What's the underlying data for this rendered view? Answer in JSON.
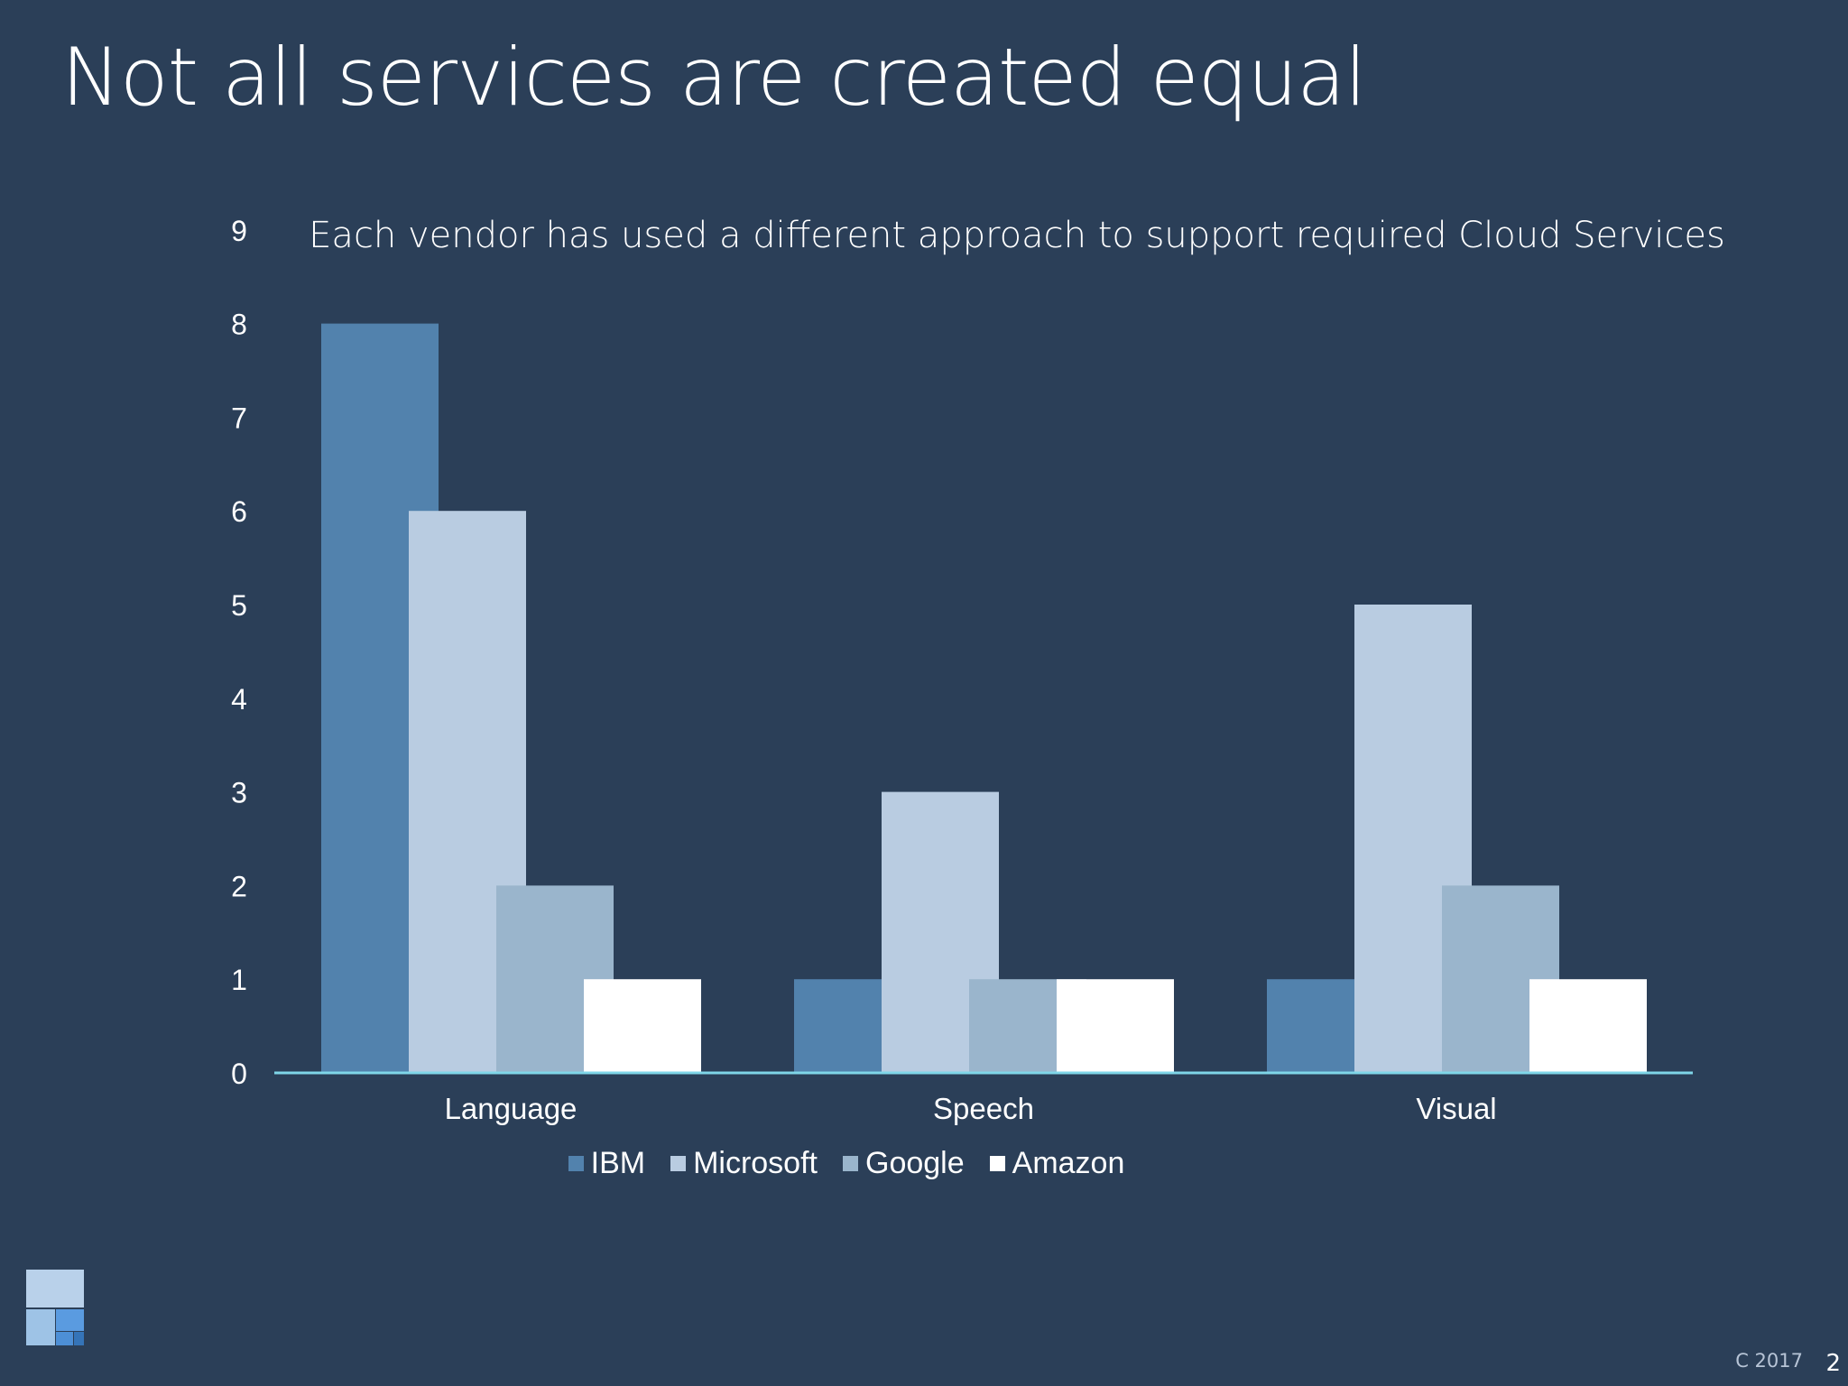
{
  "slide": {
    "title": "Not all services are created equal",
    "footer_year": "C 2017",
    "page_number": "2"
  },
  "chart_data": {
    "type": "bar",
    "title": "Each vendor has used a different approach to support required Cloud Services",
    "categories": [
      "Language",
      "Speech",
      "Visual"
    ],
    "series": [
      {
        "name": "IBM",
        "values": [
          8,
          1,
          1
        ],
        "color": "#5282ad"
      },
      {
        "name": "Microsoft",
        "values": [
          6,
          3,
          5
        ],
        "color": "#b9cce1"
      },
      {
        "name": "Google",
        "values": [
          2,
          1,
          2
        ],
        "color": "#9ab5cc"
      },
      {
        "name": "Amazon",
        "values": [
          1,
          1,
          1
        ],
        "color": "#ffffff"
      }
    ],
    "ylim": [
      0,
      9
    ],
    "y_ticks": [
      "0",
      "1",
      "2",
      "3",
      "4",
      "5",
      "6",
      "7",
      "8",
      "9"
    ],
    "grid": false,
    "legend_position": "bottom",
    "axis_color": "#7fd6e8"
  }
}
